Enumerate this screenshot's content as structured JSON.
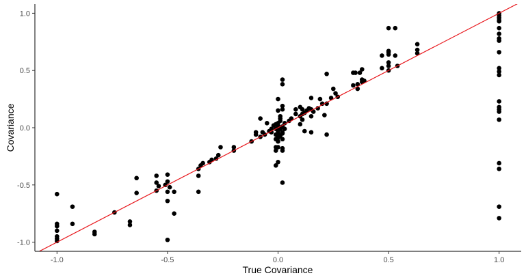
{
  "chart_data": {
    "type": "scatter",
    "xlabel": "True Covariance",
    "ylabel": "Covariance",
    "xlim": [
      -1.1,
      1.1
    ],
    "ylim": [
      -1.08,
      1.08
    ],
    "xticks": [
      -1.0,
      -0.5,
      0.0,
      0.5,
      1.0
    ],
    "yticks": [
      -1.0,
      -0.5,
      0.0,
      0.5,
      1.0
    ],
    "xtick_labels": [
      "-1.0",
      "-0.5",
      "0.0",
      "0.5",
      "1.0"
    ],
    "ytick_labels": [
      "-1.0",
      "-0.5",
      "0.0",
      "0.5",
      "1.0"
    ],
    "grid": false,
    "point_color": "#000000",
    "reference_line": {
      "slope": 1,
      "intercept": 0,
      "color": "#e8171c"
    },
    "points": [
      [
        -1.0,
        -0.58
      ],
      [
        -1.0,
        -0.84
      ],
      [
        -1.0,
        -0.86
      ],
      [
        -1.0,
        -0.9
      ],
      [
        -1.0,
        -0.95
      ],
      [
        -1.0,
        -0.97
      ],
      [
        -1.0,
        -0.99
      ],
      [
        -0.93,
        -0.69
      ],
      [
        -0.93,
        -0.84
      ],
      [
        -0.83,
        -0.91
      ],
      [
        -0.83,
        -0.93
      ],
      [
        -0.74,
        -0.74
      ],
      [
        -0.67,
        -0.82
      ],
      [
        -0.67,
        -0.85
      ],
      [
        -0.64,
        -0.44
      ],
      [
        -0.64,
        -0.57
      ],
      [
        -0.55,
        -0.42
      ],
      [
        -0.55,
        -0.48
      ],
      [
        -0.54,
        -0.51
      ],
      [
        -0.55,
        -0.55
      ],
      [
        -0.5,
        -0.41
      ],
      [
        -0.5,
        -0.47
      ],
      [
        -0.51,
        -0.5
      ],
      [
        -0.49,
        -0.52
      ],
      [
        -0.5,
        -0.56
      ],
      [
        -0.5,
        -0.64
      ],
      [
        -0.5,
        -0.98
      ],
      [
        -0.47,
        -0.56
      ],
      [
        -0.47,
        -0.75
      ],
      [
        -0.36,
        -0.36
      ],
      [
        -0.36,
        -0.42
      ],
      [
        -0.36,
        -0.56
      ],
      [
        -0.35,
        -0.33
      ],
      [
        -0.34,
        -0.31
      ],
      [
        -0.31,
        -0.3
      ],
      [
        -0.3,
        -0.28
      ],
      [
        -0.28,
        -0.27
      ],
      [
        -0.27,
        -0.24
      ],
      [
        -0.26,
        -0.17
      ],
      [
        -0.2,
        -0.17
      ],
      [
        -0.2,
        -0.2
      ],
      [
        -0.12,
        -0.12
      ],
      [
        -0.1,
        -0.06
      ],
      [
        -0.1,
        -0.04
      ],
      [
        -0.08,
        -0.08
      ],
      [
        -0.08,
        0.08
      ],
      [
        -0.07,
        -0.04
      ],
      [
        -0.06,
        -0.06
      ],
      [
        -0.05,
        0.04
      ],
      [
        -0.04,
        -0.03
      ],
      [
        -0.03,
        -0.04
      ],
      [
        -0.03,
        -0.01
      ],
      [
        -0.02,
        0.02
      ],
      [
        -0.01,
        -0.01
      ],
      [
        -0.01,
        0.03
      ],
      [
        -0.01,
        -0.06
      ],
      [
        -0.01,
        -0.1
      ],
      [
        -0.01,
        -0.17
      ],
      [
        -0.01,
        -0.2
      ],
      [
        -0.01,
        -0.33
      ],
      [
        0.0,
        0.0
      ],
      [
        0.0,
        0.01
      ],
      [
        0.0,
        0.02
      ],
      [
        0.0,
        0.04
      ],
      [
        0.0,
        -0.02
      ],
      [
        0.0,
        -0.03
      ],
      [
        0.0,
        -0.05
      ],
      [
        0.0,
        -0.08
      ],
      [
        0.0,
        -0.09
      ],
      [
        0.0,
        -0.12
      ],
      [
        0.0,
        -0.17
      ],
      [
        0.0,
        0.15
      ],
      [
        0.0,
        0.25
      ],
      [
        0.0,
        -0.3
      ],
      [
        0.01,
        0.06
      ],
      [
        0.01,
        0.08
      ],
      [
        0.01,
        0.1
      ],
      [
        0.01,
        0.0
      ],
      [
        0.01,
        -0.01
      ],
      [
        0.01,
        -0.07
      ],
      [
        0.02,
        0.16
      ],
      [
        0.02,
        0.19
      ],
      [
        0.02,
        0.38
      ],
      [
        0.02,
        0.42
      ],
      [
        0.02,
        0.01
      ],
      [
        0.02,
        -0.05
      ],
      [
        0.02,
        -0.1
      ],
      [
        0.02,
        -0.18
      ],
      [
        0.02,
        -0.2
      ],
      [
        0.02,
        -0.48
      ],
      [
        0.02,
        -0.04
      ],
      [
        0.03,
        0.04
      ],
      [
        0.03,
        -0.01
      ],
      [
        0.05,
        0.06
      ],
      [
        0.06,
        0.08
      ],
      [
        0.08,
        0.12
      ],
      [
        0.08,
        0.16
      ],
      [
        0.1,
        0.1
      ],
      [
        0.1,
        0.03
      ],
      [
        0.1,
        0.18
      ],
      [
        0.11,
        0.07
      ],
      [
        0.11,
        0.12
      ],
      [
        0.11,
        0.16
      ],
      [
        0.12,
        0.13
      ],
      [
        0.12,
        -0.03
      ],
      [
        0.13,
        0.15
      ],
      [
        0.14,
        0.17
      ],
      [
        0.15,
        0.1
      ],
      [
        0.15,
        0.16
      ],
      [
        0.15,
        0.26
      ],
      [
        0.15,
        -0.04
      ],
      [
        0.16,
        0.14
      ],
      [
        0.18,
        0.17
      ],
      [
        0.19,
        0.25
      ],
      [
        0.2,
        0.21
      ],
      [
        0.21,
        0.11
      ],
      [
        0.22,
        0.21
      ],
      [
        0.22,
        -0.06
      ],
      [
        0.22,
        0.47
      ],
      [
        0.24,
        0.26
      ],
      [
        0.25,
        0.34
      ],
      [
        0.26,
        0.3
      ],
      [
        0.27,
        0.27
      ],
      [
        0.34,
        0.37
      ],
      [
        0.34,
        0.48
      ],
      [
        0.35,
        0.48
      ],
      [
        0.36,
        0.34
      ],
      [
        0.36,
        0.38
      ],
      [
        0.37,
        0.48
      ],
      [
        0.38,
        0.4
      ],
      [
        0.38,
        0.42
      ],
      [
        0.39,
        0.41
      ],
      [
        0.38,
        0.51
      ],
      [
        0.47,
        0.52
      ],
      [
        0.47,
        0.63
      ],
      [
        0.5,
        0.54
      ],
      [
        0.5,
        0.57
      ],
      [
        0.5,
        0.64
      ],
      [
        0.5,
        0.66
      ],
      [
        0.5,
        0.67
      ],
      [
        0.5,
        0.87
      ],
      [
        0.5,
        0.5
      ],
      [
        0.53,
        0.63
      ],
      [
        0.53,
        0.87
      ],
      [
        0.54,
        0.54
      ],
      [
        0.63,
        0.65
      ],
      [
        0.63,
        0.68
      ],
      [
        0.63,
        0.73
      ],
      [
        1.0,
        1.0
      ],
      [
        1.0,
        0.98
      ],
      [
        1.0,
        0.96
      ],
      [
        1.0,
        0.94
      ],
      [
        1.0,
        0.93
      ],
      [
        1.0,
        0.87
      ],
      [
        1.0,
        0.82
      ],
      [
        1.0,
        0.78
      ],
      [
        1.0,
        0.76
      ],
      [
        1.0,
        0.66
      ],
      [
        1.0,
        0.52
      ],
      [
        1.0,
        0.49
      ],
      [
        1.0,
        0.46
      ],
      [
        1.0,
        0.23
      ],
      [
        1.0,
        0.18
      ],
      [
        1.0,
        0.16
      ],
      [
        1.0,
        0.14
      ],
      [
        1.0,
        0.07
      ],
      [
        1.0,
        -0.31
      ],
      [
        1.0,
        -0.36
      ],
      [
        1.0,
        -0.69
      ],
      [
        1.0,
        -0.79
      ]
    ]
  }
}
